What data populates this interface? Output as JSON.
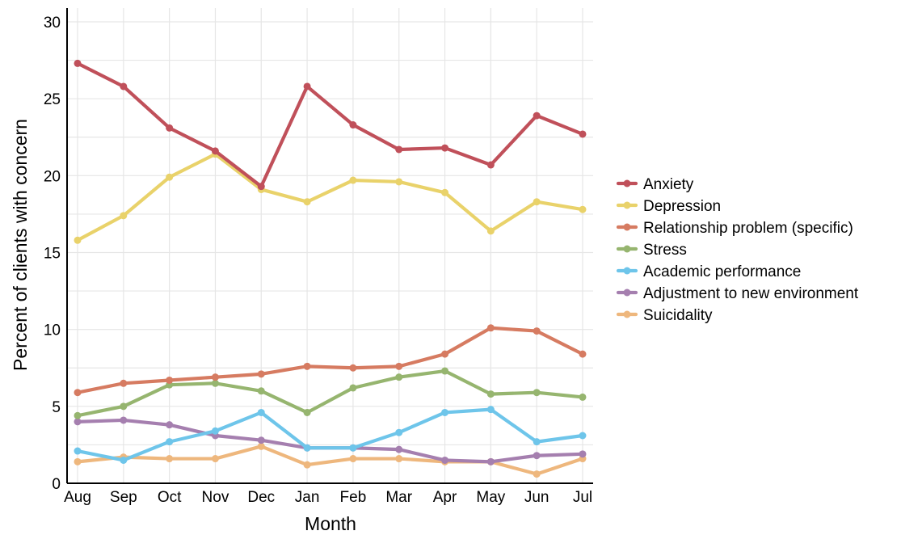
{
  "chart_data": {
    "type": "line",
    "xlabel": "Month",
    "ylabel": "Percent of clients with concern",
    "categories": [
      "Aug",
      "Sep",
      "Oct",
      "Nov",
      "Dec",
      "Jan",
      "Feb",
      "Mar",
      "Apr",
      "May",
      "Jun",
      "Jul"
    ],
    "ylim": [
      0,
      30
    ],
    "yticks": [
      0,
      5,
      10,
      15,
      20,
      25,
      30
    ],
    "grid": true,
    "legend_position": "right",
    "series": [
      {
        "name": "Anxiety",
        "color": "#c0505a",
        "values": [
          27.3,
          25.8,
          23.1,
          21.6,
          19.3,
          25.8,
          23.3,
          21.7,
          21.8,
          20.7,
          23.9,
          22.7
        ]
      },
      {
        "name": "Depression",
        "color": "#e9d26a",
        "values": [
          15.8,
          17.4,
          19.9,
          21.4,
          19.1,
          18.3,
          19.7,
          19.6,
          18.9,
          16.4,
          18.3,
          17.8
        ]
      },
      {
        "name": "Relationship problem (specific)",
        "color": "#d67b61",
        "values": [
          5.9,
          6.5,
          6.7,
          6.9,
          7.1,
          7.6,
          7.5,
          7.6,
          8.4,
          10.1,
          9.9,
          8.4
        ]
      },
      {
        "name": "Stress",
        "color": "#96b56f",
        "values": [
          4.4,
          5.0,
          6.4,
          6.5,
          6.0,
          4.6,
          6.2,
          6.9,
          7.3,
          5.8,
          5.9,
          5.6
        ]
      },
      {
        "name": "Academic performance",
        "color": "#6ec5ea",
        "values": [
          2.1,
          1.5,
          2.7,
          3.4,
          4.6,
          2.3,
          2.3,
          3.3,
          4.6,
          4.8,
          2.7,
          3.1
        ]
      },
      {
        "name": "Adjustment to new environment",
        "color": "#a57faf",
        "values": [
          4.0,
          4.1,
          3.8,
          3.1,
          2.8,
          2.3,
          2.3,
          2.2,
          1.5,
          1.4,
          1.8,
          1.9
        ]
      },
      {
        "name": "Suicidality",
        "color": "#eeb77d",
        "values": [
          1.4,
          1.7,
          1.6,
          1.6,
          2.4,
          1.2,
          1.6,
          1.6,
          1.4,
          1.4,
          0.6,
          1.6
        ]
      }
    ]
  }
}
